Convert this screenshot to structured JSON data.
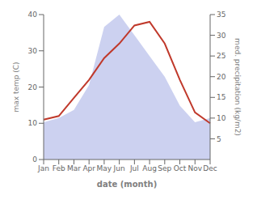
{
  "chart_data": {
    "type": "line",
    "categories": [
      "Jan",
      "Feb",
      "Mar",
      "Apr",
      "May",
      "Jun",
      "Jul",
      "Aug",
      "Sep",
      "Oct",
      "Nov",
      "Dec"
    ],
    "series": [
      {
        "type": "area",
        "axis": "y2",
        "color": "#b0b8e8",
        "values": [
          9,
          10,
          12,
          18,
          32,
          35,
          30,
          25,
          20,
          13,
          9,
          10
        ]
      },
      {
        "type": "line",
        "axis": "y",
        "color": "#c0392b",
        "values": [
          11,
          12,
          17,
          22,
          28,
          32,
          37,
          38,
          32,
          22,
          13,
          10
        ]
      }
    ],
    "xlabel": "date (month)",
    "ylabel": "max temp (C)",
    "y2label": "med. precipitation (kg/m2)",
    "ylim": [
      0,
      40
    ],
    "yticks": [
      0,
      10,
      20,
      30,
      40
    ],
    "y2lim": [
      0,
      35
    ],
    "y2ticks": [
      5,
      10,
      15,
      20,
      25,
      30,
      35
    ],
    "grid": false
  }
}
